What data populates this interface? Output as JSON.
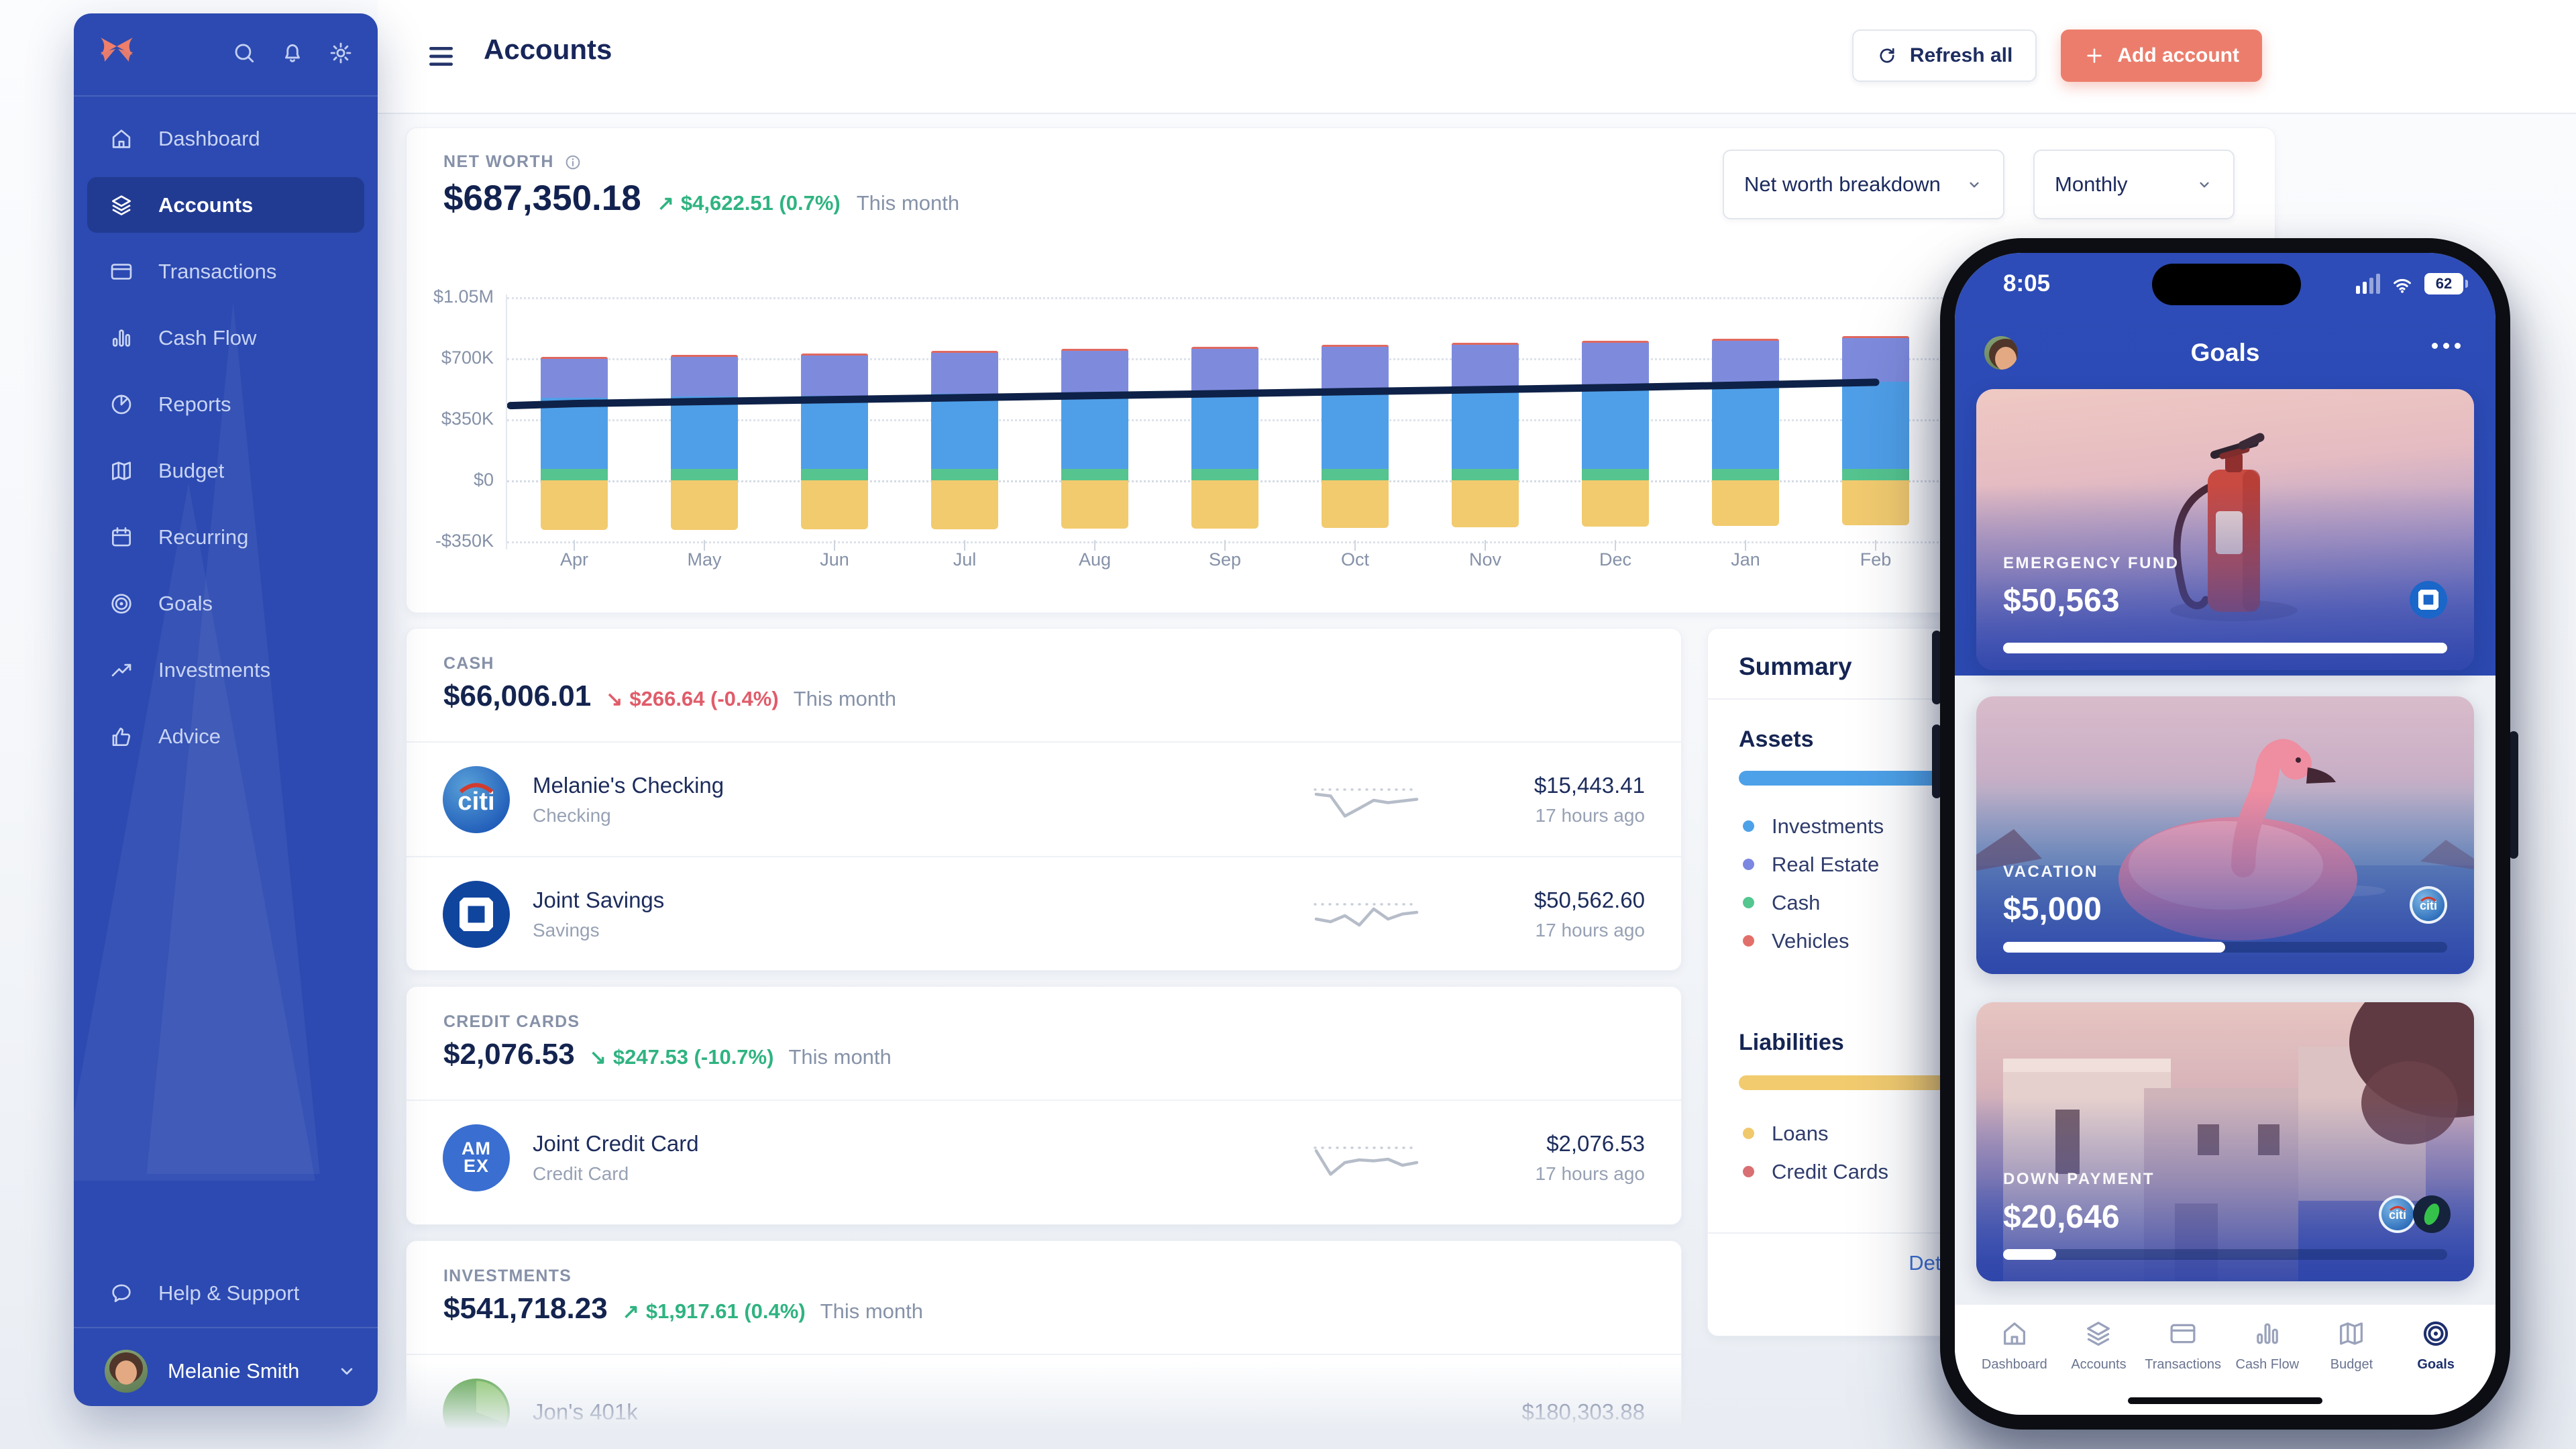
{
  "colors": {
    "accent_salmon": "#ec7d6c",
    "sidebar_blue": "#2c4ab1",
    "navy_text": "#14244f",
    "positive": "#2fb381",
    "negative": "#e05c6a",
    "trend_line": "#0e2148"
  },
  "header": {
    "title": "Accounts",
    "refresh_label": "Refresh all",
    "add_label": "Add account"
  },
  "sidebar": {
    "top_icons": [
      "search-icon",
      "bell-icon",
      "gear-icon"
    ],
    "items": [
      {
        "label": "Dashboard",
        "icon": "home",
        "active": false
      },
      {
        "label": "Accounts",
        "icon": "layers",
        "active": true
      },
      {
        "label": "Transactions",
        "icon": "card",
        "active": false
      },
      {
        "label": "Cash Flow",
        "icon": "bars",
        "active": false
      },
      {
        "label": "Reports",
        "icon": "pie",
        "active": false
      },
      {
        "label": "Budget",
        "icon": "map",
        "active": false
      },
      {
        "label": "Recurring",
        "icon": "calendar",
        "active": false
      },
      {
        "label": "Goals",
        "icon": "target",
        "active": false
      },
      {
        "label": "Investments",
        "icon": "trend",
        "active": false
      },
      {
        "label": "Advice",
        "icon": "thumb",
        "active": false
      }
    ],
    "help_label": "Help & Support",
    "user_name": "Melanie Smith"
  },
  "net_worth": {
    "label": "NET WORTH",
    "value": "$687,350.18",
    "change_arrow": "↗",
    "change_text": "$4,622.51 (0.7%)",
    "period": "This month",
    "breakdown_selector": "Net worth breakdown",
    "range_selector": "Monthly"
  },
  "chart_data": {
    "type": "stacked-bar-with-line",
    "title": "Net worth breakdown by month",
    "categories": [
      "Apr",
      "May",
      "Jun",
      "Jul",
      "Aug",
      "Sep",
      "Oct",
      "Nov",
      "Dec",
      "Jan",
      "Feb"
    ],
    "unit": "USD thousands",
    "ylim": [
      -350,
      1050
    ],
    "yticks": [
      {
        "label": "$1.05M",
        "value": 1050
      },
      {
        "label": "$700K",
        "value": 700
      },
      {
        "label": "$350K",
        "value": 350
      },
      {
        "label": "$0",
        "value": 0
      },
      {
        "label": "-$350K",
        "value": -350
      }
    ],
    "grid": true,
    "series": [
      {
        "name": "Cash",
        "color": "#55c48e",
        "values": [
          64,
          65,
          65,
          66,
          66,
          66,
          66,
          66,
          66,
          66,
          66
        ]
      },
      {
        "name": "Investments",
        "color": "#4f9fe8",
        "values": [
          408,
          414,
          421,
          430,
          438,
          447,
          456,
          465,
          474,
          486,
          498
        ]
      },
      {
        "name": "Real Estate",
        "color": "#7e8bdd",
        "values": [
          226,
          228,
          231,
          234,
          237,
          240,
          243,
          245,
          247,
          249,
          251
        ]
      },
      {
        "name": "Vehicles",
        "color": "#e0685f",
        "values": [
          11,
          11,
          11,
          11,
          11,
          12,
          12,
          12,
          12,
          12,
          13
        ]
      },
      {
        "name": "Loans",
        "color": "#f2cb6f",
        "values": [
          -286,
          -283,
          -281,
          -279,
          -277,
          -275,
          -272,
          -269,
          -266,
          -262,
          -258
        ]
      }
    ],
    "line": {
      "name": "Net worth",
      "color": "#0e2148",
      "values": [
        440,
        452,
        463,
        474,
        486,
        497,
        509,
        520,
        532,
        546,
        562
      ]
    }
  },
  "sections": {
    "cash": {
      "label": "CASH",
      "value": "$66,006.01",
      "change_arrow": "↘",
      "change_text": "$266.64 (-0.4%)",
      "period": "This month",
      "accounts": [
        {
          "name": "Melanie's Checking",
          "type": "Checking",
          "value": "$15,443.41",
          "updated": "17 hours ago",
          "institution": "citi",
          "spark": [
            0.3,
            0.35,
            0.95,
            0.72,
            0.48,
            0.55,
            0.5,
            0.45
          ]
        },
        {
          "name": "Joint Savings",
          "type": "Savings",
          "value": "$50,562.60",
          "updated": "17 hours ago",
          "institution": "chase",
          "spark": [
            0.6,
            0.68,
            0.5,
            0.78,
            0.3,
            0.6,
            0.45,
            0.4
          ]
        }
      ]
    },
    "credit_cards": {
      "label": "CREDIT CARDS",
      "value": "$2,076.53",
      "change_arrow": "↘",
      "change_text": "$247.53 (-10.7%)",
      "period": "This month",
      "accounts": [
        {
          "name": "Joint Credit Card",
          "type": "Credit Card",
          "value": "$2,076.53",
          "updated": "17 hours ago",
          "institution": "amex",
          "spark": [
            0.25,
            0.95,
            0.6,
            0.52,
            0.55,
            0.5,
            0.68,
            0.6
          ]
        }
      ]
    },
    "investments": {
      "label": "INVESTMENTS",
      "value": "$541,718.23",
      "change_arrow": "↗",
      "change_text": "$1,917.61 (0.4%)",
      "period": "This month",
      "accounts": [
        {
          "name": "Jon's 401k",
          "type": "",
          "value": "$180,303.88",
          "updated": "",
          "institution": "fidelity",
          "spark": []
        }
      ]
    }
  },
  "summary": {
    "title": "Summary",
    "assets": {
      "label": "Assets",
      "bar_color": "#4da1e8",
      "items": [
        {
          "label": "Investments",
          "color": "#4da1e8"
        },
        {
          "label": "Real Estate",
          "color": "#7b87e0"
        },
        {
          "label": "Cash",
          "color": "#54c690"
        },
        {
          "label": "Vehicles",
          "color": "#e2706a"
        }
      ]
    },
    "liabilities": {
      "label": "Liabilities",
      "bar_color": "#f2cb6f",
      "items": [
        {
          "label": "Loans",
          "color": "#f0c96c"
        },
        {
          "label": "Credit Cards",
          "color": "#d96f72"
        }
      ]
    },
    "details_label": "Details"
  },
  "phone": {
    "status": {
      "time": "8:05",
      "battery": "62"
    },
    "title": "Goals",
    "goals": [
      {
        "label": "EMERGENCY FUND",
        "value": "$50,563",
        "progress": 100,
        "badges": [
          "chase"
        ]
      },
      {
        "label": "VACATION",
        "value": "$5,000",
        "progress": 50,
        "badges": [
          "citi"
        ]
      },
      {
        "label": "DOWN PAYMENT",
        "value": "$20,646",
        "progress": 12,
        "badges": [
          "citi",
          "sprout"
        ]
      }
    ],
    "nav": [
      {
        "label": "Dashboard",
        "icon": "home",
        "active": false
      },
      {
        "label": "Accounts",
        "icon": "layers",
        "active": false
      },
      {
        "label": "Transactions",
        "icon": "card",
        "active": false
      },
      {
        "label": "Cash Flow",
        "icon": "bars",
        "active": false
      },
      {
        "label": "Budget",
        "icon": "map",
        "active": false
      },
      {
        "label": "Goals",
        "icon": "target",
        "active": true
      }
    ]
  }
}
